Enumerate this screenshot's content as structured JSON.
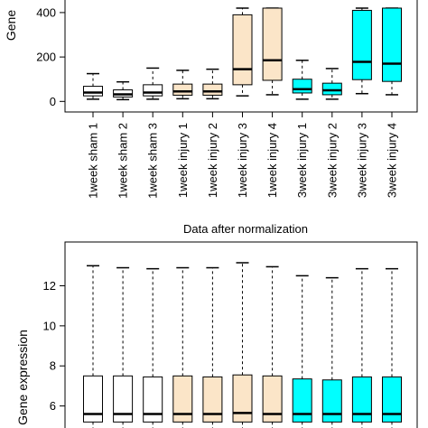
{
  "colors": {
    "sham": "#ffffff",
    "week1_injury": "#fbe5c8",
    "week3": "#00ffff",
    "stroke": "#000000"
  },
  "chart_data": [
    {
      "type": "box",
      "title": "",
      "ylabel": "Gene",
      "yticks": [
        0,
        200,
        400
      ],
      "ylim": [
        -15,
        420
      ],
      "categories": [
        "1week sham 1",
        "1week sham 2",
        "1week sham 3",
        "1week injury 1",
        "1week injury 2",
        "1week injury 3",
        "1week injury 4",
        "3week injury 1",
        "3week injury 2",
        "3week injury 3",
        "3week injury 4"
      ],
      "groups": [
        "sham",
        "sham",
        "sham",
        "week1_injury",
        "week1_injury",
        "week1_injury",
        "week1_injury",
        "week3",
        "week3",
        "week3",
        "week3"
      ],
      "boxes": [
        {
          "min": 10,
          "q1": 25,
          "median": 40,
          "q3": 68,
          "max": 125
        },
        {
          "min": 8,
          "q1": 20,
          "median": 32,
          "q3": 52,
          "max": 88
        },
        {
          "min": 10,
          "q1": 25,
          "median": 40,
          "q3": 75,
          "max": 150
        },
        {
          "min": 12,
          "q1": 28,
          "median": 45,
          "q3": 78,
          "max": 140
        },
        {
          "min": 12,
          "q1": 28,
          "median": 45,
          "q3": 78,
          "max": 145
        },
        {
          "min": 25,
          "q1": 75,
          "median": 145,
          "q3": 390,
          "max": 420
        },
        {
          "min": 30,
          "q1": 95,
          "median": 185,
          "q3": 420,
          "max": 420
        },
        {
          "min": 10,
          "q1": 38,
          "median": 55,
          "q3": 100,
          "max": 185
        },
        {
          "min": 10,
          "q1": 30,
          "median": 50,
          "q3": 82,
          "max": 148
        },
        {
          "min": 35,
          "q1": 98,
          "median": 178,
          "q3": 410,
          "max": 420
        },
        {
          "min": 30,
          "q1": 90,
          "median": 170,
          "q3": 420,
          "max": 420
        }
      ]
    },
    {
      "type": "box",
      "title": "Data after normalization",
      "ylabel": "Gene expression",
      "yticks": [
        6,
        8,
        10,
        12
      ],
      "ylim": [
        4.9,
        13.6
      ],
      "groups": [
        "sham",
        "sham",
        "sham",
        "week1_injury",
        "week1_injury",
        "week1_injury",
        "week1_injury",
        "week3",
        "week3",
        "week3",
        "week3"
      ],
      "boxes": [
        {
          "min": 4.8,
          "q1": 5.2,
          "median": 5.6,
          "q3": 7.5,
          "max": 13.0
        },
        {
          "min": 4.8,
          "q1": 5.2,
          "median": 5.6,
          "q3": 7.5,
          "max": 12.9
        },
        {
          "min": 4.8,
          "q1": 5.2,
          "median": 5.6,
          "q3": 7.45,
          "max": 12.85
        },
        {
          "min": 4.8,
          "q1": 5.2,
          "median": 5.6,
          "q3": 7.5,
          "max": 12.9
        },
        {
          "min": 4.8,
          "q1": 5.2,
          "median": 5.6,
          "q3": 7.45,
          "max": 12.9
        },
        {
          "min": 4.8,
          "q1": 5.2,
          "median": 5.65,
          "q3": 7.55,
          "max": 13.15
        },
        {
          "min": 4.8,
          "q1": 5.2,
          "median": 5.6,
          "q3": 7.5,
          "max": 12.95
        },
        {
          "min": 4.8,
          "q1": 5.2,
          "median": 5.6,
          "q3": 7.35,
          "max": 12.5
        },
        {
          "min": 4.8,
          "q1": 5.2,
          "median": 5.6,
          "q3": 7.3,
          "max": 12.4
        },
        {
          "min": 4.8,
          "q1": 5.2,
          "median": 5.6,
          "q3": 7.45,
          "max": 12.85
        },
        {
          "min": 4.8,
          "q1": 5.2,
          "median": 5.6,
          "q3": 7.45,
          "max": 12.85
        }
      ]
    }
  ]
}
